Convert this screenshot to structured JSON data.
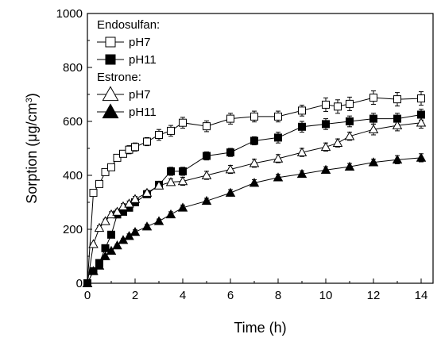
{
  "chart_data": {
    "type": "scatter",
    "xlabel": "Time (h)",
    "ylabel_main": "Sorption (μg/cm",
    "ylabel_sup": "3",
    "ylabel_close": ")",
    "xlim": [
      0,
      14.5
    ],
    "ylim": [
      0,
      1000
    ],
    "xticks": [
      0,
      2,
      4,
      6,
      8,
      10,
      12,
      14
    ],
    "yticks": [
      0,
      200,
      400,
      600,
      800,
      1000
    ],
    "minor_xticks": true,
    "minor_yticks": true,
    "grid": false,
    "legend_position": "top-left",
    "legend_groups": [
      {
        "title": "Endosulfan:",
        "series_indices": [
          0,
          1
        ]
      },
      {
        "title": "Estrone:",
        "series_indices": [
          2,
          3
        ]
      }
    ],
    "series": [
      {
        "name": "pH7",
        "group": "Endosulfan",
        "marker": "open-square",
        "x": [
          0,
          0.25,
          0.5,
          0.75,
          1,
          1.25,
          1.5,
          1.75,
          2,
          2.5,
          3,
          3.5,
          4,
          5,
          6,
          7,
          8,
          9,
          10,
          10.5,
          11,
          12,
          13,
          14
        ],
        "y": [
          0,
          335,
          368,
          412,
          430,
          465,
          480,
          495,
          505,
          525,
          550,
          565,
          595,
          582,
          610,
          618,
          618,
          640,
          662,
          655,
          665,
          688,
          682,
          685
        ],
        "err": [
          0,
          10,
          10,
          10,
          12,
          12,
          12,
          15,
          15,
          15,
          20,
          20,
          20,
          20,
          20,
          20,
          20,
          20,
          25,
          25,
          25,
          25,
          25,
          25
        ]
      },
      {
        "name": "pH11",
        "group": "Endosulfan",
        "marker": "filled-square",
        "x": [
          0,
          0.25,
          0.5,
          0.75,
          1,
          1.25,
          1.5,
          1.75,
          2,
          2.5,
          3,
          3.5,
          4,
          5,
          6,
          7,
          8,
          9,
          10,
          11,
          12,
          13,
          14
        ],
        "y": [
          0,
          45,
          75,
          130,
          180,
          255,
          265,
          280,
          300,
          330,
          365,
          415,
          415,
          472,
          485,
          528,
          540,
          580,
          590,
          600,
          610,
          610,
          625
        ],
        "err": [
          0,
          5,
          5,
          8,
          8,
          10,
          10,
          10,
          10,
          10,
          12,
          15,
          15,
          15,
          15,
          15,
          20,
          20,
          20,
          20,
          20,
          20,
          20
        ]
      },
      {
        "name": "pH7",
        "group": "Estrone",
        "marker": "open-triangle",
        "x": [
          0,
          0.25,
          0.5,
          0.75,
          1,
          1.25,
          1.5,
          1.75,
          2,
          2.5,
          3,
          3.5,
          4,
          5,
          6,
          7,
          8,
          9,
          10,
          10.5,
          11,
          12,
          13,
          14
        ],
        "y": [
          0,
          145,
          205,
          230,
          255,
          265,
          285,
          295,
          312,
          335,
          362,
          375,
          378,
          400,
          422,
          445,
          462,
          485,
          505,
          520,
          545,
          570,
          585,
          595
        ],
        "err": [
          0,
          5,
          8,
          8,
          10,
          10,
          10,
          10,
          10,
          10,
          12,
          12,
          15,
          15,
          15,
          15,
          15,
          15,
          15,
          15,
          15,
          20,
          20,
          20
        ]
      },
      {
        "name": "pH11",
        "group": "Estrone",
        "marker": "filled-triangle",
        "x": [
          0,
          0.25,
          0.5,
          0.75,
          1,
          1.25,
          1.5,
          1.75,
          2,
          2.5,
          3,
          3.5,
          4,
          5,
          6,
          7,
          8,
          9,
          10,
          11,
          12,
          13,
          14
        ],
        "y": [
          0,
          45,
          65,
          100,
          120,
          140,
          160,
          175,
          190,
          210,
          230,
          255,
          280,
          305,
          335,
          372,
          392,
          405,
          420,
          432,
          448,
          458,
          465
        ],
        "err": [
          0,
          5,
          5,
          5,
          5,
          5,
          5,
          8,
          8,
          8,
          8,
          10,
          10,
          10,
          12,
          12,
          12,
          12,
          12,
          12,
          12,
          15,
          15
        ]
      }
    ]
  }
}
